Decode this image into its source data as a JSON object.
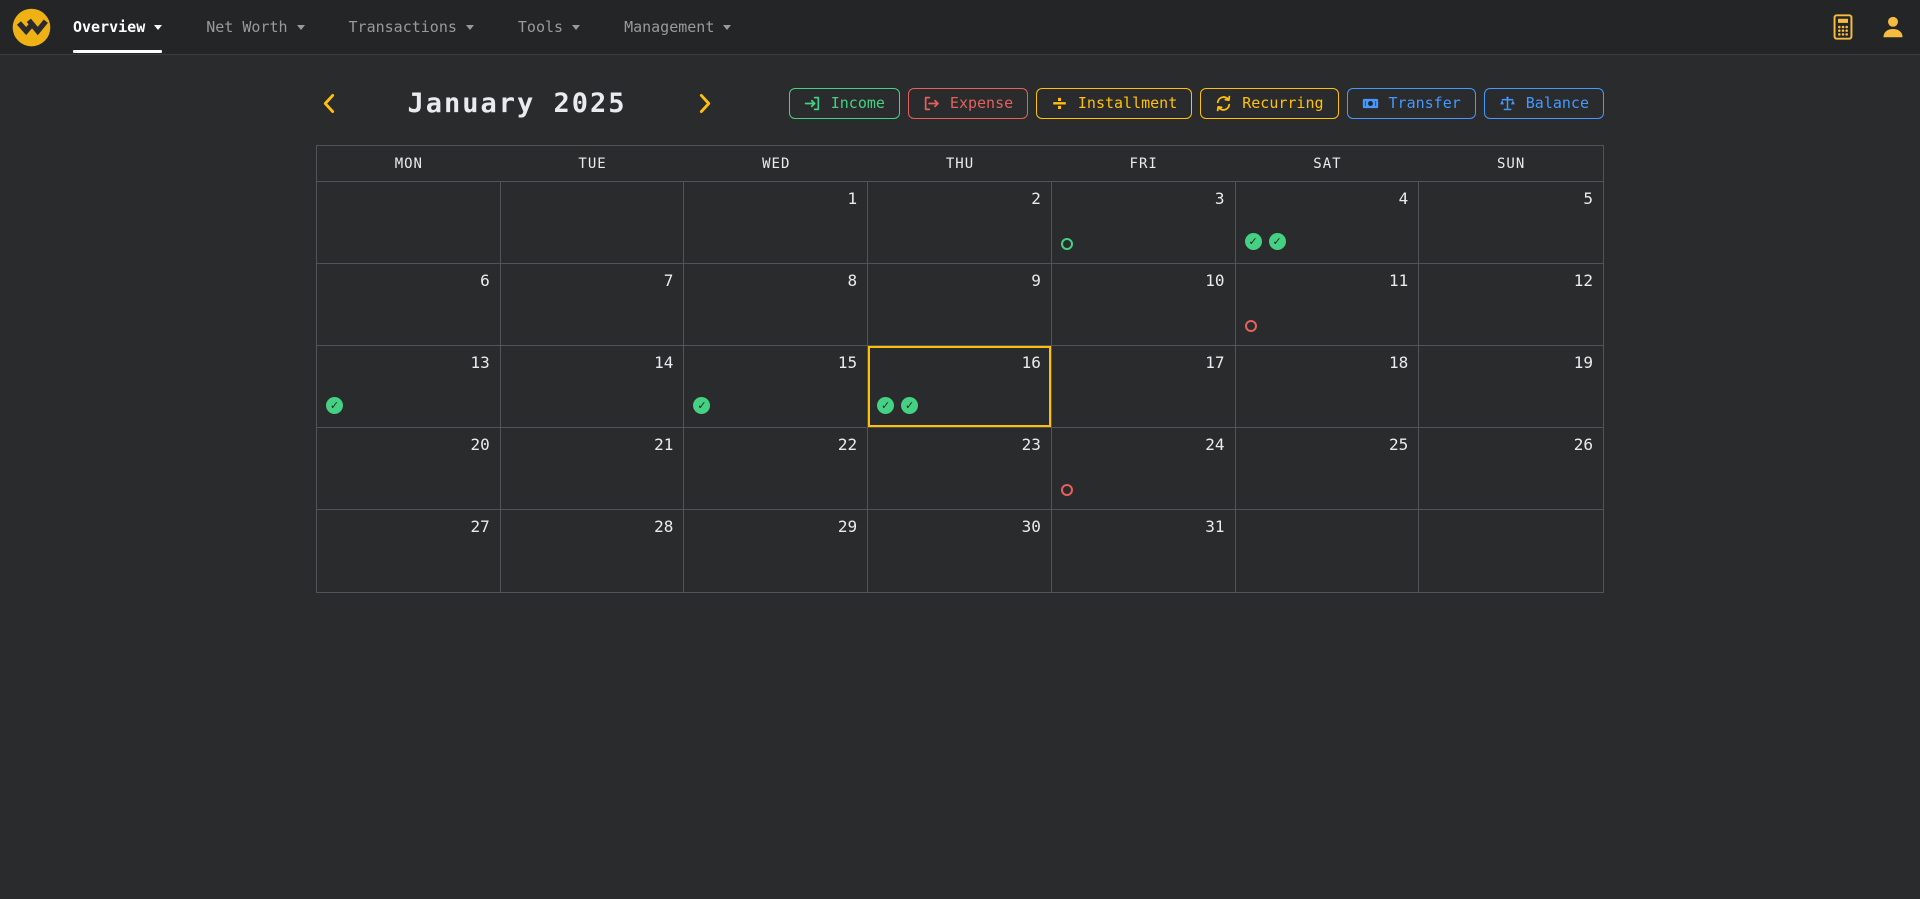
{
  "navbar": {
    "items": [
      {
        "label": "Overview",
        "active": true
      },
      {
        "label": "Net Worth",
        "active": false
      },
      {
        "label": "Transactions",
        "active": false
      },
      {
        "label": "Tools",
        "active": false
      },
      {
        "label": "Management",
        "active": false
      }
    ],
    "actions": [
      {
        "name": "calculator",
        "icon": "calculator-icon"
      },
      {
        "name": "profile",
        "icon": "person-icon"
      }
    ]
  },
  "calendar": {
    "title": "January 2025",
    "weekdays": [
      "MON",
      "TUE",
      "WED",
      "THU",
      "FRI",
      "SAT",
      "SUN"
    ],
    "selected_day": 16,
    "legend": [
      {
        "label": "Income",
        "color": "green",
        "icon": "income-icon"
      },
      {
        "label": "Expense",
        "color": "red",
        "icon": "expense-icon"
      },
      {
        "label": "Installment",
        "color": "yellow",
        "icon": "installment-icon"
      },
      {
        "label": "Recurring",
        "color": "yellow",
        "icon": "recurring-icon"
      },
      {
        "label": "Transfer",
        "color": "blue",
        "icon": "transfer-icon"
      },
      {
        "label": "Balance",
        "color": "blue",
        "icon": "balance-icon"
      }
    ],
    "weeks": [
      [
        null,
        null,
        {
          "day": 1
        },
        {
          "day": 2
        },
        {
          "day": 3,
          "indicators": [
            {
              "type": "circle-outline",
              "color": "green"
            }
          ]
        },
        {
          "day": 4,
          "indicators": [
            {
              "type": "check-circle",
              "color": "green"
            },
            {
              "type": "check-circle",
              "color": "green"
            }
          ]
        },
        {
          "day": 5
        }
      ],
      [
        {
          "day": 6
        },
        {
          "day": 7
        },
        {
          "day": 8
        },
        {
          "day": 9
        },
        {
          "day": 10
        },
        {
          "day": 11,
          "indicators": [
            {
              "type": "circle-outline",
              "color": "red"
            }
          ]
        },
        {
          "day": 12
        }
      ],
      [
        {
          "day": 13,
          "indicators": [
            {
              "type": "check-circle",
              "color": "green"
            }
          ]
        },
        {
          "day": 14
        },
        {
          "day": 15,
          "indicators": [
            {
              "type": "check-circle",
              "color": "green"
            }
          ]
        },
        {
          "day": 16,
          "selected": true,
          "indicators": [
            {
              "type": "check-circle",
              "color": "green"
            },
            {
              "type": "check-circle",
              "color": "green"
            }
          ]
        },
        {
          "day": 17
        },
        {
          "day": 18
        },
        {
          "day": 19
        }
      ],
      [
        {
          "day": 20
        },
        {
          "day": 21
        },
        {
          "day": 22
        },
        {
          "day": 23
        },
        {
          "day": 24,
          "indicators": [
            {
              "type": "circle-outline",
              "color": "red"
            }
          ]
        },
        {
          "day": 25
        },
        {
          "day": 26
        }
      ],
      [
        {
          "day": 27
        },
        {
          "day": 28
        },
        {
          "day": 29
        },
        {
          "day": 30
        },
        {
          "day": 31
        },
        null,
        null
      ]
    ]
  },
  "colors": {
    "green": "#45d183",
    "red": "#e5605e",
    "yellow": "#ffc107",
    "blue": "#4798fe",
    "accent": "#ffc107",
    "navbar_bg": "#242527",
    "body_bg": "#2a2b2c",
    "grid_line": "#515458",
    "text": "#e9ecef",
    "muted_text": "#9a9a9a",
    "nav_underline": "#ffffff",
    "icon_amber": "#f5bc40",
    "logo_yellow": "#eeb214",
    "logo_dark": "#2b2b2b"
  }
}
